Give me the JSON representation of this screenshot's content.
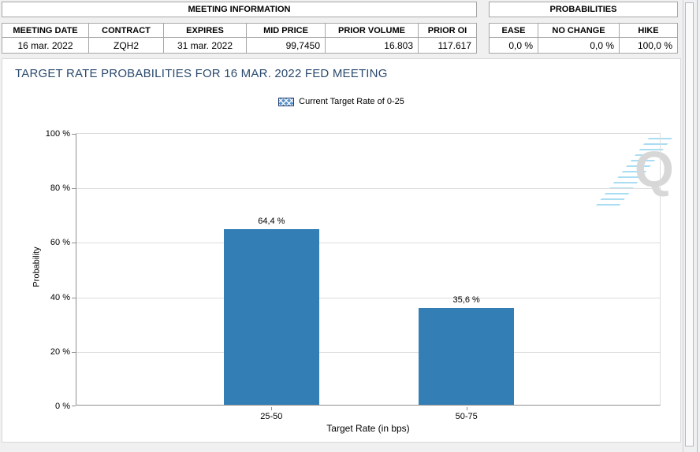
{
  "meeting_information": {
    "title": "MEETING INFORMATION",
    "columns": [
      "MEETING DATE",
      "CONTRACT",
      "EXPIRES",
      "MID PRICE",
      "PRIOR VOLUME",
      "PRIOR OI"
    ],
    "values": [
      "16 mar. 2022",
      "ZQH2",
      "31 mar. 2022",
      "99,7450",
      "16.803",
      "117.617"
    ]
  },
  "probabilities": {
    "title": "PROBABILITIES",
    "columns": [
      "EASE",
      "NO CHANGE",
      "HIKE"
    ],
    "values": [
      "0,0 %",
      "0,0 %",
      "100,0 %"
    ]
  },
  "chart_data": {
    "type": "bar",
    "title": "TARGET RATE PROBABILITIES FOR 16 MAR. 2022 FED MEETING",
    "legend": [
      {
        "label": "Current Target Rate of 0-25",
        "swatch": "blue-crosshatch"
      }
    ],
    "legend_position": "top-center",
    "categories": [
      "25-50",
      "50-75"
    ],
    "values": [
      64.4,
      35.6
    ],
    "value_labels": [
      "64,4 %",
      "35,6 %"
    ],
    "xlabel": "Target Rate (in bps)",
    "ylabel": "Probability",
    "ylim": [
      0,
      100
    ],
    "ytick_labels": [
      "0 %",
      "20 %",
      "40 %",
      "60 %",
      "80 %",
      "100 %"
    ],
    "grid": true,
    "bar_color": "#337FB5",
    "title_color": "#2b4a6e"
  },
  "watermark": {
    "letter": "Q"
  }
}
